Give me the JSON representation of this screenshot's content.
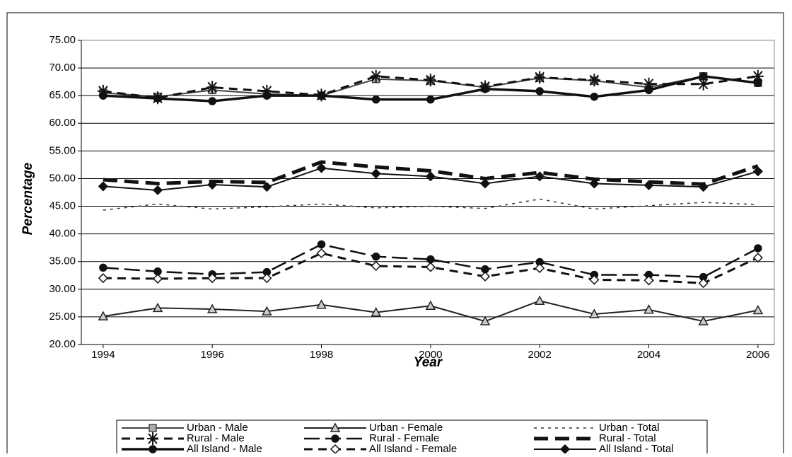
{
  "chart_data": {
    "type": "line",
    "x_label": "Year",
    "y_label": "Percentage",
    "x": [
      1994,
      1995,
      1996,
      1997,
      1998,
      1999,
      2000,
      2001,
      2002,
      2003,
      2004,
      2005,
      2006
    ],
    "xlim": [
      1993.6,
      2006.3
    ],
    "xticks": [
      1994,
      1996,
      1998,
      2000,
      2002,
      2004,
      2006
    ],
    "ylim": [
      20,
      75
    ],
    "yticks": [
      {
        "value": 20,
        "label": "20.00"
      },
      {
        "value": 25,
        "label": "25.00"
      },
      {
        "value": 30,
        "label": "30.00"
      },
      {
        "value": 35,
        "label": "35.00"
      },
      {
        "value": 40,
        "label": "40.00"
      },
      {
        "value": 45,
        "label": "45.00"
      },
      {
        "value": 50,
        "label": "50.00"
      },
      {
        "value": 55,
        "label": "55.00"
      },
      {
        "value": 60,
        "label": "60.00"
      },
      {
        "value": 65,
        "label": "65.00"
      },
      {
        "value": 70,
        "label": "70.00"
      },
      {
        "value": 75,
        "label": "75.00"
      }
    ],
    "grid": true,
    "legend": "bottom",
    "series": [
      {
        "name": "Urban - Male",
        "color": "#444444",
        "style": "solid",
        "marker": "square",
        "values": [
          65.5,
          64.8,
          66.0,
          65.3,
          65.0,
          68.0,
          67.7,
          66.5,
          68.2,
          67.7,
          66.5,
          68.5,
          67.3
        ]
      },
      {
        "name": "Urban - Female",
        "color": "#222222",
        "style": "solid",
        "marker": "triangle",
        "values": [
          25.1,
          26.6,
          26.4,
          26.0,
          27.2,
          25.8,
          27.0,
          24.2,
          27.9,
          25.5,
          26.3,
          24.2,
          26.2
        ]
      },
      {
        "name": "Urban - Total",
        "color": "#333333",
        "style": "dotted",
        "marker": "none",
        "values": [
          44.3,
          45.4,
          44.5,
          44.9,
          45.4,
          44.7,
          45.0,
          44.6,
          46.3,
          44.5,
          45.1,
          45.7,
          45.3
        ]
      },
      {
        "name": "Rural - Male",
        "color": "#111111",
        "style": "dashed",
        "marker": "star",
        "values": [
          65.8,
          64.6,
          66.5,
          65.8,
          65.1,
          68.5,
          67.8,
          66.6,
          68.3,
          67.8,
          67.1,
          67.1,
          68.5
        ]
      },
      {
        "name": "Rural - Female",
        "color": "#111111",
        "style": "longdash",
        "marker": "circle",
        "values": [
          33.9,
          33.2,
          32.7,
          33.1,
          38.1,
          35.9,
          35.4,
          33.6,
          34.9,
          32.6,
          32.6,
          32.2,
          37.4
        ]
      },
      {
        "name": "Rural - Total",
        "color": "#111111",
        "style": "thickdash",
        "marker": "none",
        "values": [
          49.8,
          49.1,
          49.5,
          49.3,
          53.0,
          52.1,
          51.4,
          50.0,
          51.1,
          49.9,
          49.4,
          49.0,
          52.3
        ]
      },
      {
        "name": "All Island - Male",
        "color": "#111111",
        "style": "thick",
        "marker": "circle",
        "values": [
          65.0,
          64.5,
          64.0,
          65.0,
          65.0,
          64.3,
          64.3,
          66.2,
          65.8,
          64.8,
          66.0,
          68.5,
          67.3
        ]
      },
      {
        "name": "All Island - Female",
        "color": "#111111",
        "style": "dashed",
        "marker": "diamond-open",
        "values": [
          32.0,
          31.9,
          32.0,
          32.0,
          36.5,
          34.2,
          34.0,
          32.3,
          33.8,
          31.7,
          31.6,
          31.1,
          35.7
        ]
      },
      {
        "name": "All Island - Total",
        "color": "#111111",
        "style": "solid",
        "marker": "diamond",
        "values": [
          48.6,
          47.9,
          48.9,
          48.5,
          51.9,
          50.9,
          50.4,
          49.1,
          50.4,
          49.1,
          48.8,
          48.5,
          51.3
        ]
      }
    ]
  }
}
